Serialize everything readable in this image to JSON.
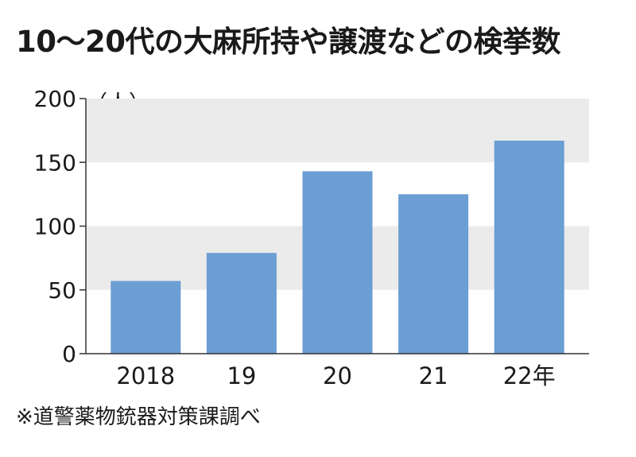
{
  "title": "10〜20代の大麻所持や譲渡などの検挙数",
  "source_note": "※道警薬物銃器対策課調べ",
  "colors": {
    "bar": "#6b9ed3",
    "band": "#ebebeb",
    "axis": "#333333"
  },
  "chart_data": {
    "type": "bar",
    "title": "10〜20代の大麻所持や譲渡などの検挙数",
    "unit": "（人）",
    "categories": [
      "2018",
      "19",
      "20",
      "21",
      "22年"
    ],
    "values": [
      57,
      79,
      143,
      125,
      167
    ],
    "ylim": [
      0,
      200
    ],
    "yticks": [
      0,
      50,
      100,
      150,
      200
    ],
    "grid": "alternating horizontal bands",
    "legend": "none"
  }
}
